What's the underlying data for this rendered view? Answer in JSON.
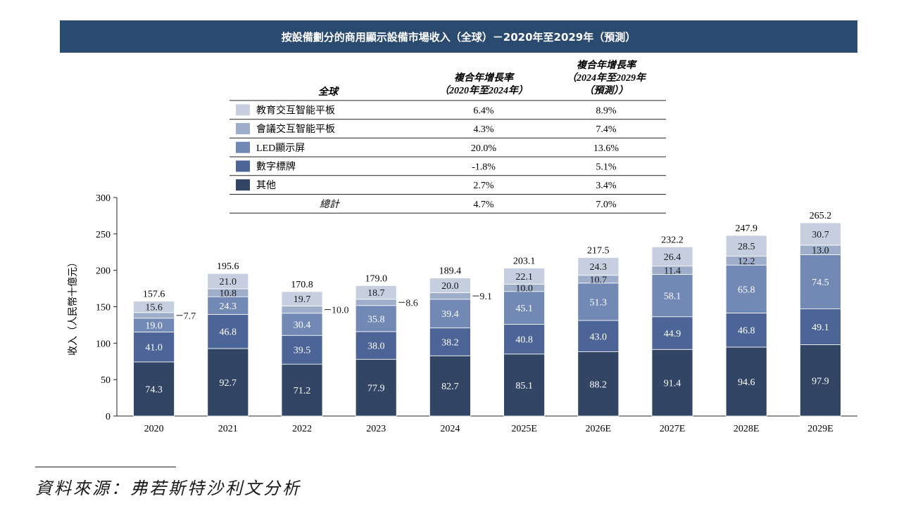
{
  "title": "按設備劃分的商用顯示設備市場收入（全球）－2020年至2029年（預測）",
  "source": "資料來源：弗若斯特沙利文分析",
  "legend_table": {
    "header_region": "全球",
    "header_cagr1": [
      "複合年增長率",
      "（2020年至2024年）"
    ],
    "header_cagr2": [
      "複合年增長率",
      "（2024年至2029年",
      "（預測））"
    ],
    "rows": [
      {
        "label": "教育交互智能平板",
        "cagr1": "6.4%",
        "cagr2": "8.9%",
        "color": "#c5cfe0"
      },
      {
        "label": "會議交互智能平板",
        "cagr1": "4.3%",
        "cagr2": "7.4%",
        "color": "#9eadc9"
      },
      {
        "label": "LED顯示屏",
        "cagr1": "20.0%",
        "cagr2": "13.6%",
        "color": "#7289b5"
      },
      {
        "label": "數字標牌",
        "cagr1": "-1.8%",
        "cagr2": "5.1%",
        "color": "#4d6596"
      },
      {
        "label": "其他",
        "cagr1": "2.7%",
        "cagr2": "3.4%",
        "color": "#334565"
      }
    ],
    "total": {
      "label": "總計",
      "cagr1": "4.7%",
      "cagr2": "7.0%"
    }
  },
  "chart_data": {
    "type": "bar",
    "stacked": true,
    "categories": [
      "2020",
      "2021",
      "2022",
      "2023",
      "2024",
      "2025E",
      "2026E",
      "2027E",
      "2028E",
      "2029E"
    ],
    "ylabel": "收入（人民幣十億元）",
    "ylim": [
      0,
      300
    ],
    "yticks": [
      0,
      50,
      100,
      150,
      200,
      250,
      300
    ],
    "series": [
      {
        "name": "其他",
        "values": [
          74.3,
          92.7,
          71.2,
          77.9,
          82.7,
          85.1,
          88.2,
          91.4,
          94.6,
          97.9
        ],
        "color": "#334565"
      },
      {
        "name": "數字標牌",
        "values": [
          41.0,
          46.8,
          39.5,
          38.0,
          38.2,
          40.8,
          43.0,
          44.9,
          46.8,
          49.1
        ],
        "color": "#4d6596"
      },
      {
        "name": "LED顯示屏",
        "values": [
          19.0,
          24.3,
          30.4,
          35.8,
          39.4,
          45.1,
          51.3,
          58.1,
          65.8,
          74.5
        ],
        "color": "#7289b5"
      },
      {
        "name": "會議交互智能平板",
        "values": [
          7.7,
          10.8,
          10.0,
          8.6,
          9.1,
          10.0,
          10.7,
          11.4,
          12.2,
          13.0
        ],
        "color": "#9eadc9"
      },
      {
        "name": "教育交互智能平板",
        "values": [
          15.6,
          21.0,
          19.7,
          18.7,
          20.0,
          22.1,
          24.3,
          26.4,
          28.5,
          30.7
        ],
        "color": "#c5cfe0"
      }
    ],
    "totals": [
      157.6,
      195.6,
      170.8,
      179.0,
      189.4,
      203.1,
      217.5,
      232.2,
      247.9,
      265.2
    ],
    "external_labels": [
      true,
      false,
      true,
      true,
      true,
      false,
      false,
      false,
      false,
      false
    ]
  }
}
